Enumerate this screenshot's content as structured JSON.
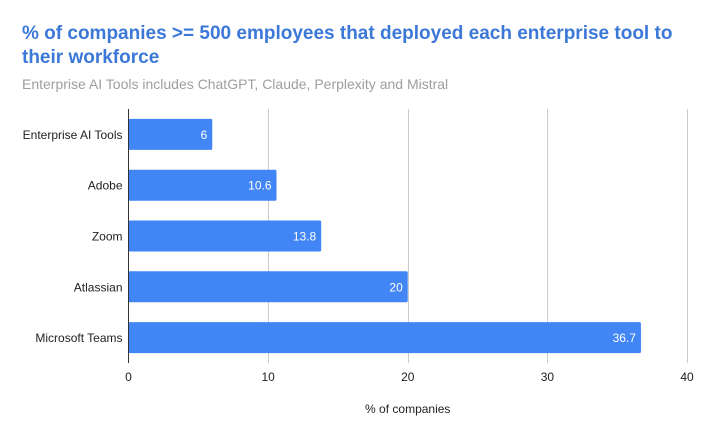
{
  "chart_data": {
    "type": "bar",
    "orientation": "horizontal",
    "title": "% of companies >= 500 employees that deployed each enterprise tool to their workforce",
    "subtitle": "Enterprise AI Tools includes ChatGPT, Claude, Perplexity and Mistral",
    "categories": [
      "Enterprise AI Tools",
      "Adobe",
      "Zoom",
      "Atlassian",
      "Microsoft Teams"
    ],
    "values": [
      6,
      10.6,
      13.8,
      20,
      36.7
    ],
    "data_labels": [
      "6",
      "10.6",
      "13.8",
      "20",
      "36.7"
    ],
    "xlabel": "% of companies",
    "ylabel": "",
    "xlim": [
      0,
      40
    ],
    "xticks": [
      0,
      10,
      20,
      30,
      40
    ],
    "xtick_labels": [
      "0",
      "10",
      "20",
      "30",
      "40"
    ],
    "grid": true,
    "legend": "none",
    "bar_color": "#4285f4",
    "title_color": "#3c78d8"
  }
}
